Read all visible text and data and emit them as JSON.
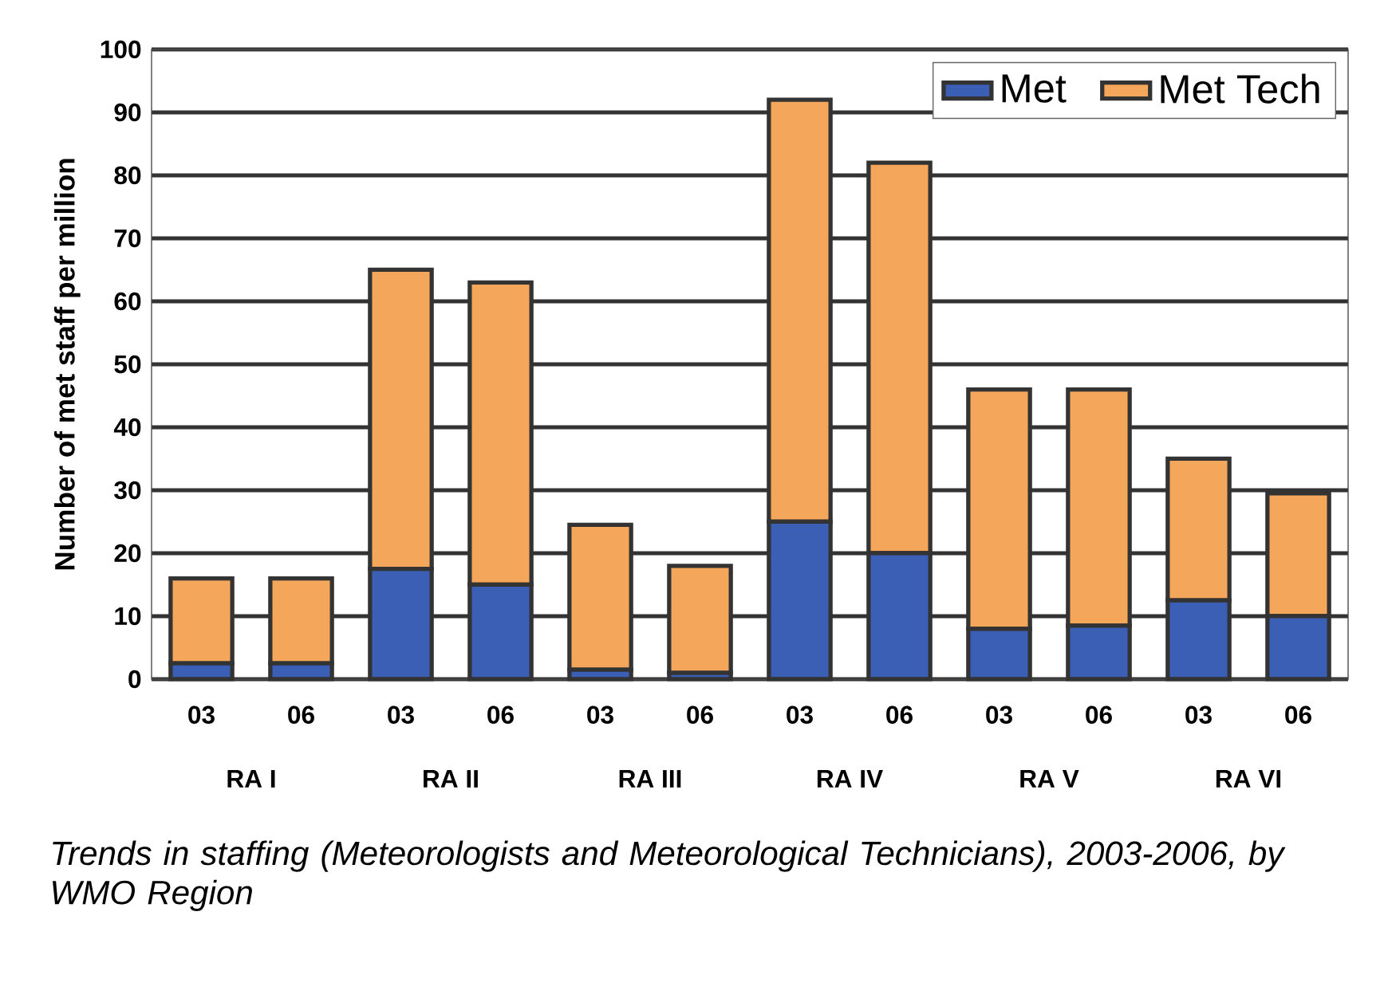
{
  "chart_data": {
    "type": "bar",
    "stacked": true,
    "title": "Trends in staffing (Meteorologists and Meteorological Technicians), 2003-2006, by WMO Region",
    "ylabel": "Number of met staff per million",
    "categories": [
      "03",
      "06",
      "03",
      "06",
      "03",
      "06",
      "03",
      "06",
      "03",
      "06",
      "03",
      "06"
    ],
    "series": [
      {
        "name": "Met",
        "color": "#3a5fb5",
        "values": [
          2.5,
          2.5,
          17.5,
          15,
          1.5,
          1,
          25,
          20,
          8,
          8.5,
          12.5,
          10
        ]
      },
      {
        "name": "Met Tech",
        "color": "#f4a65a",
        "values": [
          13.5,
          13.5,
          47.5,
          48,
          23,
          17,
          67,
          62,
          38,
          37.5,
          22.5,
          19.5
        ]
      }
    ],
    "annotations": [
      "RA I",
      "RA II",
      "RA III",
      "RA IV",
      "RA V",
      "RA VI"
    ],
    "ylim": [
      0,
      100
    ],
    "yticks": [
      0,
      10,
      20,
      30,
      40,
      50,
      60,
      70,
      80,
      90,
      100
    ],
    "grid": "y",
    "legend": "top right"
  }
}
